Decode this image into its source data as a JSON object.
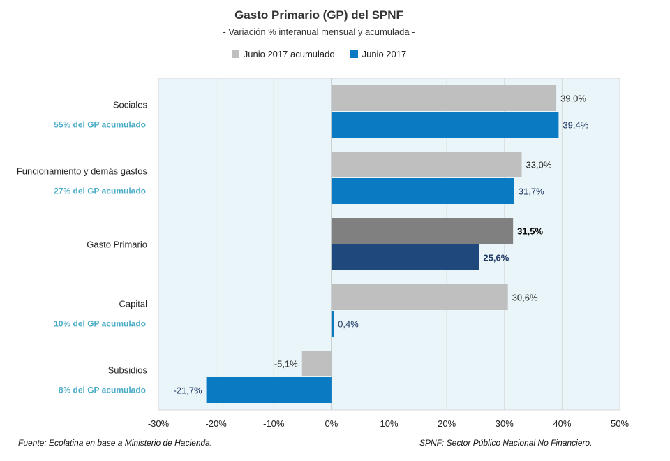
{
  "colors": {
    "accumulated": "#bfbfbf",
    "monthly": "#0a7ac3",
    "accumulated_total": "#808080",
    "monthly_total": "#1f497d",
    "plot_background": "#e9f5f8",
    "share_label": "#4bacc6"
  },
  "chart_data": {
    "type": "bar",
    "orientation": "horizontal",
    "title": "Gasto Primario (GP) del SPNF",
    "subtitle": "- Variación % interanual mensual y acumulada -",
    "categories": [
      "Sociales",
      "Funcionamiento y demás gastos",
      "Gasto Primario",
      "Capital",
      "Subsidios"
    ],
    "category_shares": [
      "55% del GP acumulado",
      "27% del GP acumulado",
      "",
      "10% del GP acumulado",
      "8% del GP acumulado"
    ],
    "highlight_category": "Gasto Primario",
    "series": [
      {
        "name": "Junio 2017 acumulado",
        "values": [
          39.0,
          33.0,
          31.5,
          30.6,
          -5.1
        ],
        "labels": [
          "39,0%",
          "33,0%",
          "31,5%",
          "30,6%",
          "-5,1%"
        ]
      },
      {
        "name": "Junio 2017",
        "values": [
          39.4,
          31.7,
          25.6,
          0.4,
          -21.7
        ],
        "labels": [
          "39,4%",
          "31,7%",
          "25,6%",
          "0,4%",
          "-21,7%"
        ]
      }
    ],
    "xlim": [
      -30,
      50
    ],
    "xticks": [
      -30,
      -20,
      -10,
      0,
      10,
      20,
      30,
      40,
      50
    ],
    "xtick_labels": [
      "-30%",
      "-20%",
      "-10%",
      "0%",
      "10%",
      "20%",
      "30%",
      "40%",
      "50%"
    ],
    "grid": true,
    "legend_position": "top"
  },
  "footer": {
    "source": "Fuente: Ecolatina en base a Ministerio de Hacienda.",
    "note": "SPNF: Sector Público Nacional No Financiero."
  }
}
